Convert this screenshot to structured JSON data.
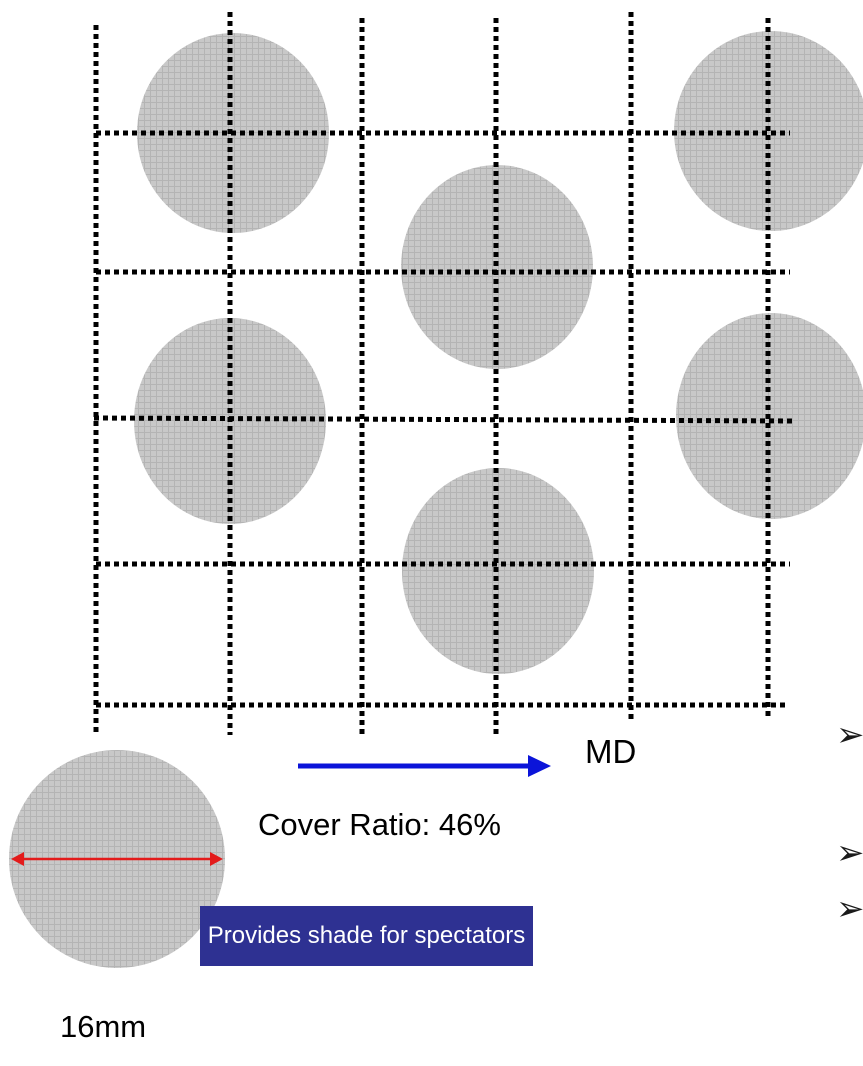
{
  "diagram": {
    "direction_label": "MD",
    "cover_ratio_text": "Cover Ratio: 46%",
    "callout_text": "Provides shade for spectators",
    "diameter_label": "16mm",
    "bullet_glyph": "➢",
    "colors": {
      "disc_fill": "#c8c8c8",
      "disc_mesh": "#b4b4b4",
      "grid_line": "#000000",
      "arrow": "#0b14d9",
      "dimension_arrow": "#e31b1b",
      "callout_background": "#2e3192",
      "callout_text": "#ffffff"
    }
  }
}
